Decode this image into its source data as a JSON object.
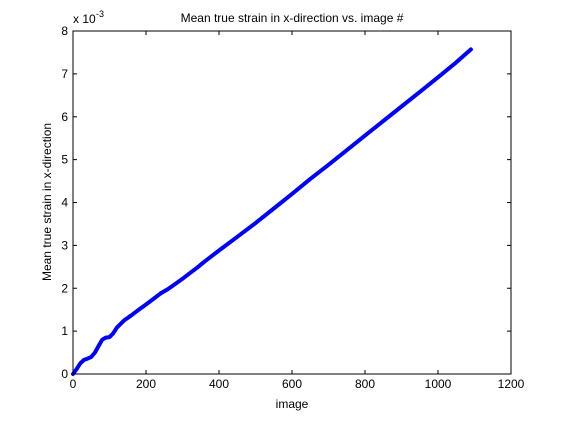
{
  "chart_data": {
    "type": "line",
    "title": "Mean true strain in x-direction vs. image #",
    "xlabel": "image",
    "ylabel": "Mean true strain in x-direction",
    "y_exponent_label": "x 10",
    "y_exponent_power": "-3",
    "xlim": [
      0,
      1200
    ],
    "ylim": [
      0,
      8
    ],
    "x_ticks": [
      "0",
      "200",
      "400",
      "600",
      "800",
      "1000",
      "1200"
    ],
    "y_ticks": [
      "0",
      "1",
      "2",
      "3",
      "4",
      "5",
      "6",
      "7",
      "8"
    ],
    "grid": false,
    "legend": "none",
    "series": [
      {
        "color": "#0000ff",
        "x": [
          0,
          10,
          20,
          30,
          40,
          50,
          60,
          70,
          80,
          90,
          100,
          110,
          120,
          140,
          160,
          180,
          200,
          220,
          240,
          260,
          280,
          300,
          320,
          340,
          360,
          380,
          400,
          450,
          500,
          550,
          600,
          650,
          700,
          750,
          800,
          850,
          900,
          950,
          1000,
          1050,
          1090
        ],
        "y": [
          0.0,
          0.12,
          0.25,
          0.33,
          0.36,
          0.4,
          0.5,
          0.65,
          0.8,
          0.85,
          0.86,
          0.95,
          1.08,
          1.25,
          1.37,
          1.5,
          1.62,
          1.75,
          1.88,
          1.98,
          2.1,
          2.22,
          2.35,
          2.48,
          2.62,
          2.75,
          2.88,
          3.2,
          3.52,
          3.86,
          4.2,
          4.55,
          4.88,
          5.22,
          5.56,
          5.9,
          6.24,
          6.58,
          6.92,
          7.27,
          7.57
        ]
      }
    ]
  }
}
